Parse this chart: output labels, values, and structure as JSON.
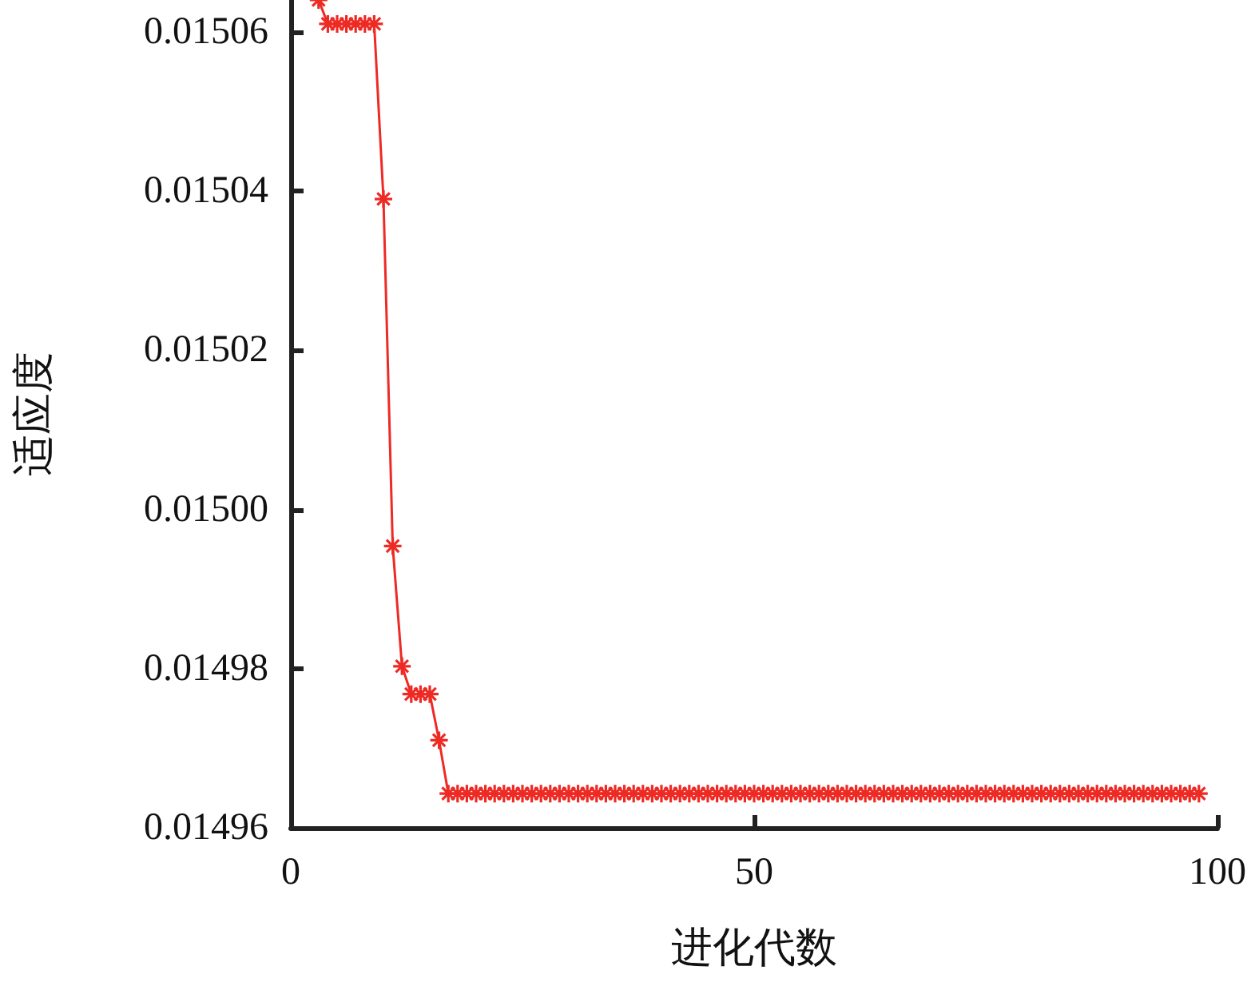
{
  "chart_data": {
    "type": "line",
    "xlabel": "进化代数",
    "ylabel": "适应度",
    "xlim": [
      0,
      100
    ],
    "xticks": [
      0,
      50,
      100
    ],
    "ylim": [
      0.01496,
      0.015064
    ],
    "yticks": [
      0.01496,
      0.01498,
      {
        "value": 0.015,
        "label": "0.01500"
      },
      0.01502,
      0.01504,
      0.01506
    ],
    "grid": false,
    "marker": "cross",
    "line_style": "solid",
    "series": [
      {
        "color": "#ee2a24",
        "x": [
          3,
          4,
          5,
          6,
          7,
          8,
          9,
          10,
          11,
          12,
          13,
          14,
          15,
          16,
          17,
          18,
          19,
          20,
          21,
          22,
          23,
          24,
          25,
          26,
          27,
          28,
          29,
          30,
          31,
          32,
          33,
          34,
          35,
          36,
          37,
          38,
          39,
          40,
          41,
          42,
          43,
          44,
          45,
          46,
          47,
          48,
          49,
          50,
          51,
          52,
          53,
          54,
          55,
          56,
          57,
          58,
          59,
          60,
          61,
          62,
          63,
          64,
          65,
          66,
          67,
          68,
          69,
          70,
          71,
          72,
          73,
          74,
          75,
          76,
          77,
          78,
          79,
          80,
          81,
          82,
          83,
          84,
          85,
          86,
          87,
          88,
          89,
          90,
          91,
          92,
          93,
          94,
          95,
          96,
          97,
          98
        ],
        "values": [
          0.015064,
          0.015061,
          0.015061,
          0.015061,
          0.015061,
          0.015061,
          0.015061,
          0.015039,
          0.0149954,
          0.0149803,
          0.0149768,
          0.0149768,
          0.0149768,
          0.014971,
          0.0149643,
          0.0149643,
          0.0149643,
          0.0149643,
          0.0149643,
          0.0149643,
          0.0149643,
          0.0149643,
          0.0149643,
          0.0149643,
          0.0149643,
          0.0149643,
          0.0149643,
          0.0149643,
          0.0149643,
          0.0149643,
          0.0149643,
          0.0149643,
          0.0149643,
          0.0149643,
          0.0149643,
          0.0149643,
          0.0149643,
          0.0149643,
          0.0149643,
          0.0149643,
          0.0149643,
          0.0149643,
          0.0149643,
          0.0149643,
          0.0149643,
          0.0149643,
          0.0149643,
          0.0149643,
          0.0149643,
          0.0149643,
          0.0149643,
          0.0149643,
          0.0149643,
          0.0149643,
          0.0149643,
          0.0149643,
          0.0149643,
          0.0149643,
          0.0149643,
          0.0149643,
          0.0149643,
          0.0149643,
          0.0149643,
          0.0149643,
          0.0149643,
          0.0149643,
          0.0149643,
          0.0149643,
          0.0149643,
          0.0149643,
          0.0149643,
          0.0149643,
          0.0149643,
          0.0149643,
          0.0149643,
          0.0149643,
          0.0149643,
          0.0149643,
          0.0149643,
          0.0149643,
          0.0149643,
          0.0149643,
          0.0149643,
          0.0149643,
          0.0149643,
          0.0149643,
          0.0149643,
          0.0149643,
          0.0149643,
          0.0149643,
          0.0149643,
          0.0149643,
          0.0149643,
          0.0149643,
          0.0149643,
          0.0149643
        ]
      }
    ]
  }
}
